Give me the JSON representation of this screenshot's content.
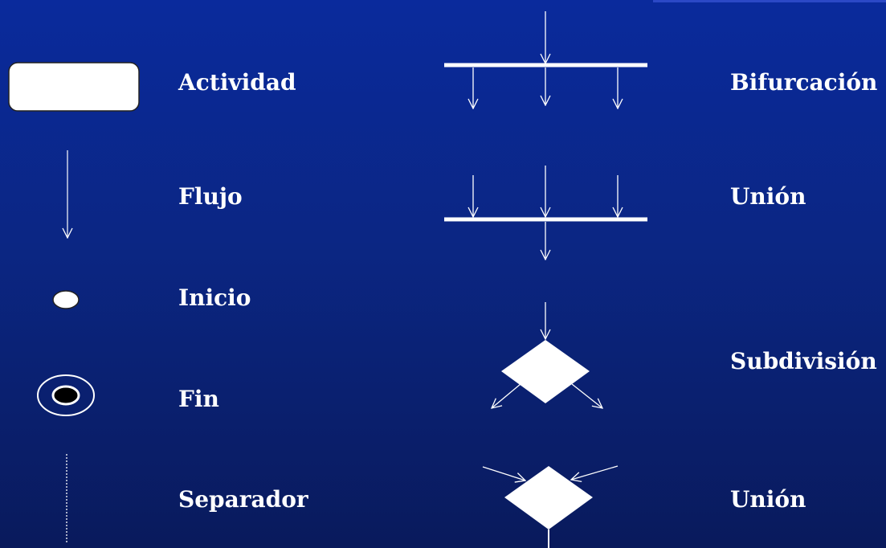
{
  "legend": {
    "left": [
      {
        "symbol": "activity",
        "label": "Actividad"
      },
      {
        "symbol": "flow",
        "label": "Flujo"
      },
      {
        "symbol": "start",
        "label": "Inicio"
      },
      {
        "symbol": "end",
        "label": "Fin"
      },
      {
        "symbol": "separator",
        "label": "Separador"
      }
    ],
    "right": [
      {
        "symbol": "fork",
        "label": "Bifurcación"
      },
      {
        "symbol": "join",
        "label": "Unión"
      },
      {
        "symbol": "decision",
        "label": "Subdivisión"
      },
      {
        "symbol": "merge",
        "label": "Unión"
      }
    ]
  },
  "colors": {
    "background_top": "#0a2a9c",
    "background_bottom": "#091a5c",
    "foreground": "#ffffff",
    "end_dot": "#000000"
  }
}
